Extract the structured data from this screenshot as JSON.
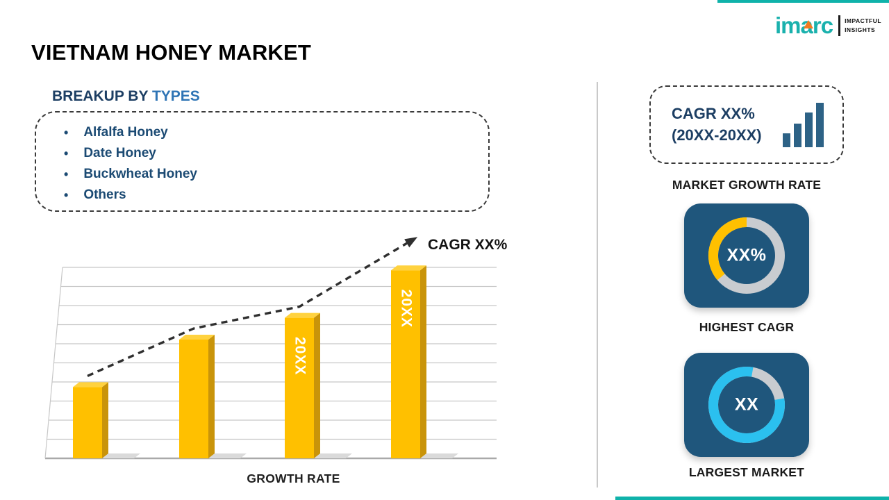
{
  "colors": {
    "accent_teal": "#0FB2AA",
    "gold": "#FFC000",
    "navy_heading": "#1C3E63",
    "blue_highlight": "#2E74B5",
    "list_blue": "#1B4A73",
    "card_blue": "#1F567C",
    "cyan": "#2BC0EF",
    "ring_gray": "#C9CCD0",
    "icon_blue": "#2D6286",
    "logo_teal": "#1AB1AD",
    "logo_orange": "#F47B20"
  },
  "header": {
    "title": "VIETNAM HONEY MARKET",
    "logo": {
      "brand": "imarc",
      "tagline_line1": "IMPACTFUL",
      "tagline_line2": "INSIGHTS"
    }
  },
  "breakup": {
    "heading_prefix": "BREAKUP BY",
    "heading_highlight": "TYPES",
    "items": [
      "Alfalfa Honey",
      "Date Honey",
      "Buckwheat Honey",
      "Others"
    ]
  },
  "chart_data": {
    "type": "bar",
    "values": [
      36,
      60,
      71,
      95
    ],
    "ylim": [
      0,
      100
    ],
    "bar_labels": [
      "",
      "",
      "20XX",
      "20XX"
    ],
    "bar_color": "#FFC000",
    "trend_label": "CAGR XX%",
    "xlabel": "GROWTH RATE",
    "grid": true,
    "legend": "none"
  },
  "sidebar": {
    "growth_box": {
      "line1": "CAGR XX%",
      "line2": "(20XX-20XX)"
    },
    "growth_label": "MARKET GROWTH RATE",
    "highest_cagr": {
      "value": "XX%",
      "label": "HIGHEST CAGR"
    },
    "largest_market": {
      "value": "XX",
      "label": "LARGEST MARKET"
    }
  }
}
